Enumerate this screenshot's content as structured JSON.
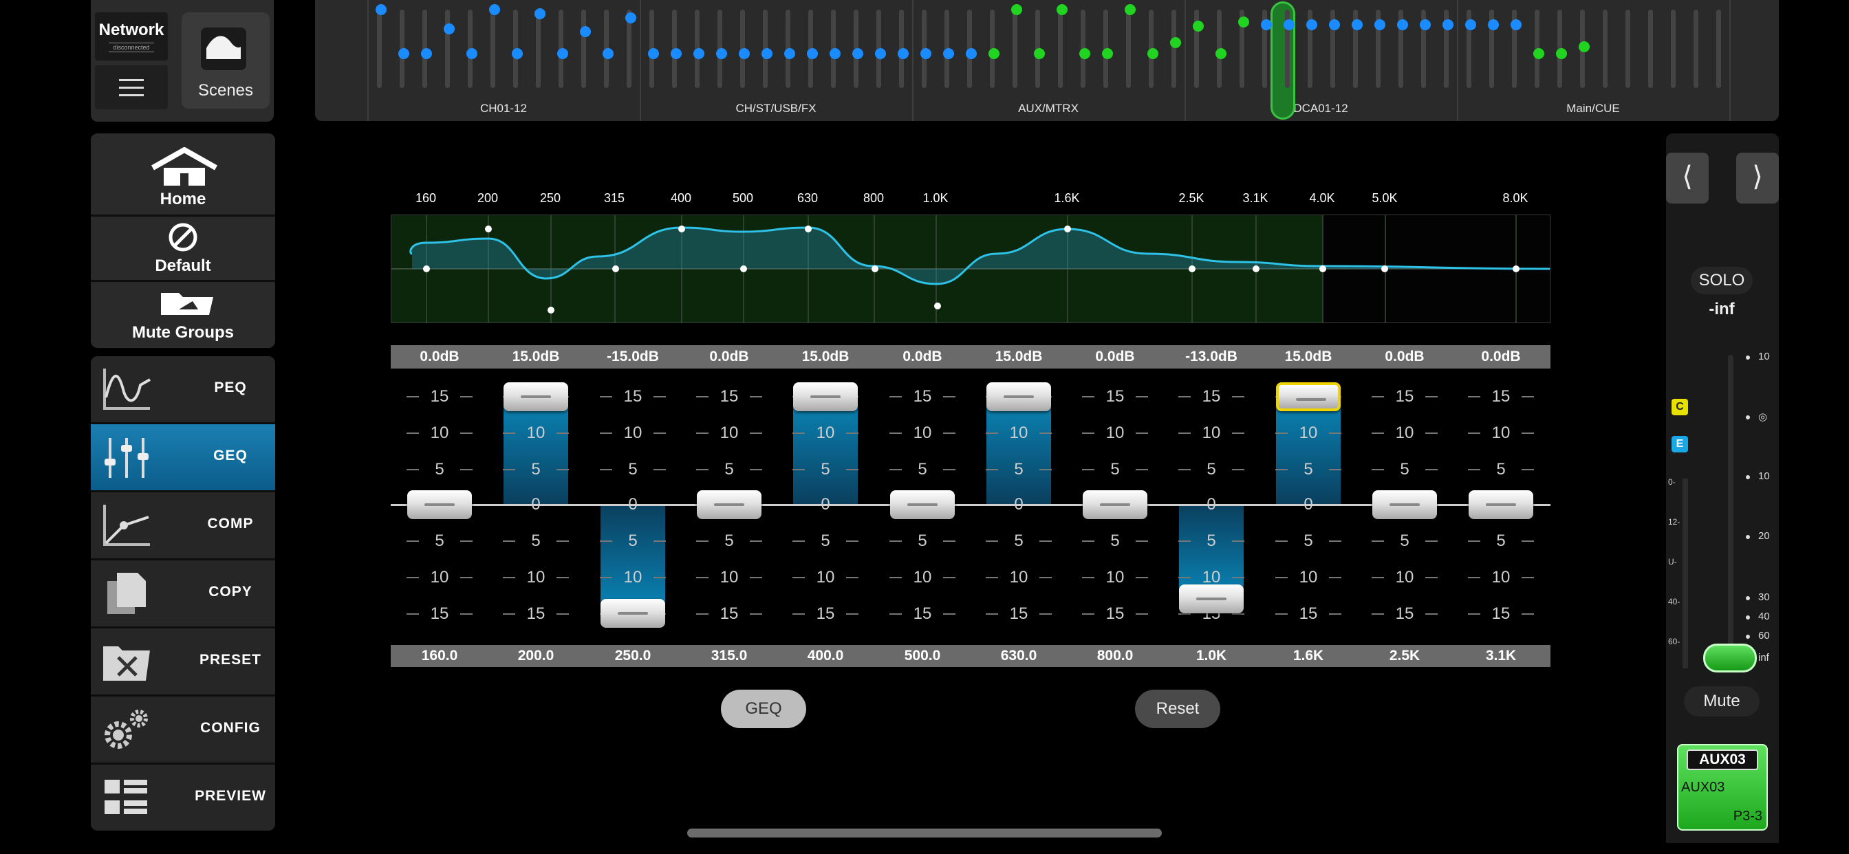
{
  "network": {
    "title": "Network",
    "status": "disconnected"
  },
  "scenes": {
    "label": "Scenes"
  },
  "nav": {
    "home": "Home",
    "default": "Default",
    "mute_groups": "Mute Groups"
  },
  "tools": [
    {
      "label": "PEQ",
      "icon": "peq-curve-icon"
    },
    {
      "label": "GEQ",
      "icon": "geq-sliders-icon",
      "active": true
    },
    {
      "label": "COMP",
      "icon": "compressor-curve-icon"
    },
    {
      "label": "COPY",
      "icon": "copy-icon"
    },
    {
      "label": "PRESET",
      "icon": "preset-folder-icon"
    },
    {
      "label": "CONFIG",
      "icon": "gears-icon"
    },
    {
      "label": "PREVIEW",
      "icon": "list-view-icon"
    }
  ],
  "channel_sections": [
    "CH01-12",
    "CH/ST/USB/FX",
    "AUX/MTRX",
    "DCA01-12",
    "Main/CUE"
  ],
  "curve_freq_labels": [
    "160",
    "200",
    "250",
    "315",
    "400",
    "500",
    "630",
    "800",
    "1.0K",
    "1.6K",
    "2.5K",
    "3.1K",
    "4.0K",
    "5.0K",
    "8.0K"
  ],
  "bands": [
    {
      "gain": "0.0dB",
      "freq": "160.0",
      "db": 0
    },
    {
      "gain": "15.0dB",
      "freq": "200.0",
      "db": 15
    },
    {
      "gain": "-15.0dB",
      "freq": "250.0",
      "db": -15
    },
    {
      "gain": "0.0dB",
      "freq": "315.0",
      "db": 0
    },
    {
      "gain": "15.0dB",
      "freq": "400.0",
      "db": 15
    },
    {
      "gain": "0.0dB",
      "freq": "500.0",
      "db": 0
    },
    {
      "gain": "15.0dB",
      "freq": "630.0",
      "db": 15
    },
    {
      "gain": "0.0dB",
      "freq": "800.0",
      "db": 0
    },
    {
      "gain": "-13.0dB",
      "freq": "1.0K",
      "db": -13
    },
    {
      "gain": "15.0dB",
      "freq": "1.6K",
      "db": 15,
      "selected": true
    },
    {
      "gain": "0.0dB",
      "freq": "2.5K",
      "db": 0
    },
    {
      "gain": "0.0dB",
      "freq": "3.1K",
      "db": 0
    }
  ],
  "scale_labels": [
    "15",
    "10",
    "5",
    "0",
    "5",
    "10",
    "15"
  ],
  "buttons": {
    "geq": "GEQ",
    "reset": "Reset"
  },
  "strip": {
    "prev": "⟨",
    "next": "⟩",
    "solo": "SOLO",
    "level": "-inf",
    "badge_c": "C",
    "badge_e": "E",
    "meter_labels": [
      "0-",
      "12-",
      "U-",
      "40-",
      "60-"
    ],
    "fader_scale": [
      "10",
      "◎",
      "10",
      "20",
      "30",
      "40",
      "60",
      "inf"
    ],
    "mute": "Mute",
    "channel_header": "AUX03",
    "channel_name": "AUX03",
    "channel_id": "P3-3",
    "colors": {
      "accent_green": "#3fd13f",
      "badge_c": "#e8e000",
      "badge_e": "#19a7e6"
    }
  }
}
